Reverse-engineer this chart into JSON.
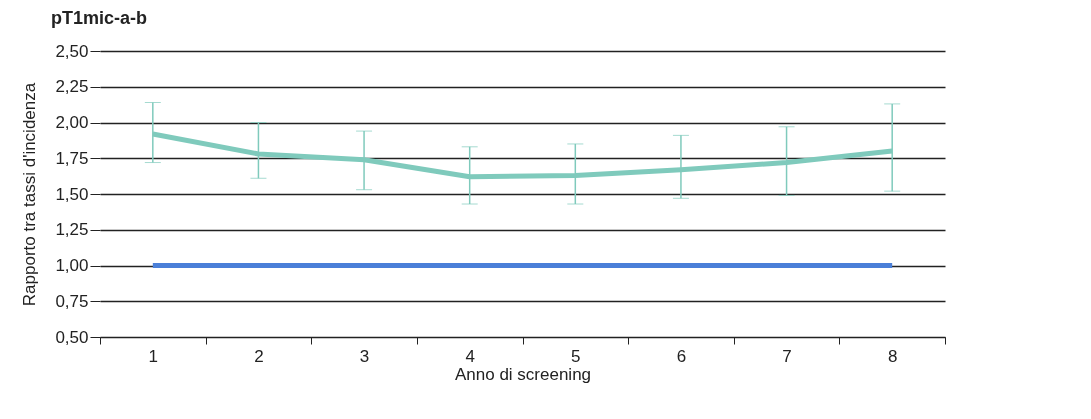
{
  "chart_data": {
    "type": "line",
    "title": "pT1mic-a-b",
    "xlabel": "Anno di screening",
    "ylabel": "Rapporto tra tassi d'incidenza",
    "categories": [
      "1",
      "2",
      "3",
      "4",
      "5",
      "6",
      "7",
      "8"
    ],
    "series": [
      {
        "color": "#7fcabc",
        "values": [
          1.92,
          1.78,
          1.74,
          1.62,
          1.63,
          1.67,
          1.72,
          1.8
        ],
        "errors": [
          [
            1.72,
            2.14
          ],
          [
            1.61,
            2.0
          ],
          [
            1.53,
            1.94
          ],
          [
            1.43,
            1.83
          ],
          [
            1.43,
            1.85
          ],
          [
            1.47,
            1.91
          ],
          [
            1.49,
            1.97
          ],
          [
            1.52,
            2.13
          ]
        ]
      },
      {
        "color": "#4a7fd8",
        "values": [
          1,
          1,
          1,
          1,
          1,
          1,
          1,
          1
        ]
      }
    ],
    "ylim": [
      0.5,
      2.5
    ],
    "yticks": [
      {
        "value": 0.5,
        "label": "0,50"
      },
      {
        "value": 0.75,
        "label": "0,75"
      },
      {
        "value": 1,
        "label": "1,00"
      },
      {
        "value": 1.25,
        "label": "1,25"
      },
      {
        "value": 1.5,
        "label": "1,50"
      },
      {
        "value": 1.75,
        "label": "1,75"
      },
      {
        "value": 2,
        "label": "2,00"
      },
      {
        "value": 2.25,
        "label": "2,25"
      },
      {
        "value": 2.5,
        "label": "2,50"
      }
    ],
    "grid": "y",
    "marker": "none",
    "line_style": "solid"
  }
}
